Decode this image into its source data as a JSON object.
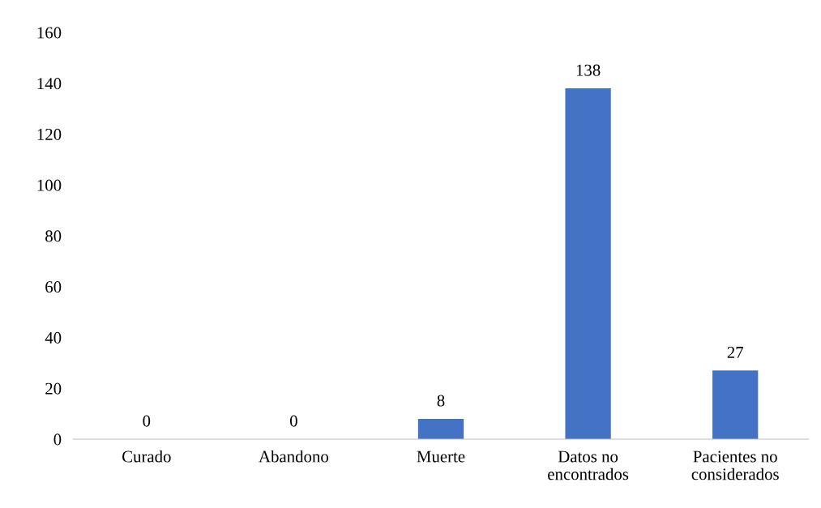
{
  "chart_data": {
    "type": "bar",
    "categories": [
      "Curado",
      "Abandono",
      "Muerte",
      "Datos no\nencontrados",
      "Pacientes no\nconsiderados"
    ],
    "values": [
      0,
      0,
      8,
      138,
      27
    ],
    "color": "#4472c4",
    "ylim": [
      0,
      160
    ],
    "yticks": [
      0,
      20,
      40,
      60,
      80,
      100,
      120,
      140,
      160
    ],
    "data_labels": true,
    "grid": false,
    "legend": false
  }
}
